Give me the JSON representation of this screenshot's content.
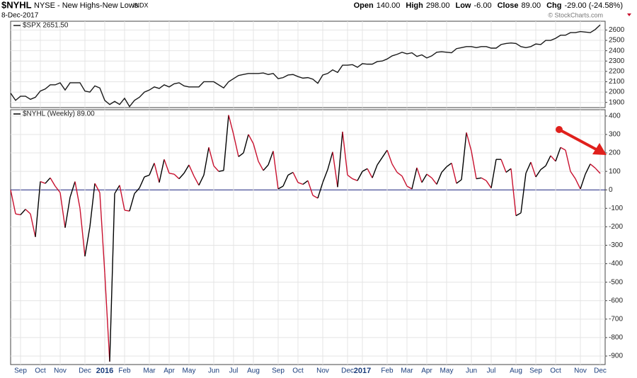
{
  "header": {
    "symbol": "$NYHL",
    "name": "NYSE - New Highs-New Lows",
    "exchange": "INDX",
    "date": "8-Dec-2017",
    "quote": [
      {
        "label": "Open",
        "value": "140.00"
      },
      {
        "label": "High",
        "value": "298.00"
      },
      {
        "label": "Low",
        "value": "-6.00"
      },
      {
        "label": "Close",
        "value": "89.00"
      },
      {
        "label": "Chg",
        "value": "-29.00 (-24.58%)"
      }
    ],
    "watermark": "© StockCharts.com"
  },
  "chart_data": [
    {
      "type": "line",
      "legend": "$SPX 2651.50",
      "color": "#1a1a1a",
      "grid": true,
      "ylim": [
        1850,
        2685
      ],
      "yticks": [
        1900,
        2000,
        2100,
        2200,
        2300,
        2400,
        2500,
        2600
      ],
      "values": [
        1990,
        1920,
        1960,
        1960,
        1930,
        1950,
        2010,
        2030,
        2070,
        2070,
        2090,
        2020,
        2090,
        2090,
        2090,
        2010,
        2000,
        2060,
        2040,
        1920,
        1880,
        1910,
        1880,
        1940,
        1860,
        1920,
        1950,
        2000,
        2020,
        2050,
        2035,
        2070,
        2050,
        2080,
        2090,
        2060,
        2050,
        2050,
        2050,
        2100,
        2100,
        2100,
        2070,
        2040,
        2100,
        2130,
        2160,
        2170,
        2180,
        2180,
        2180,
        2185,
        2170,
        2180,
        2130,
        2140,
        2165,
        2170,
        2150,
        2135,
        2140,
        2125,
        2085,
        2165,
        2180,
        2215,
        2190,
        2260,
        2260,
        2265,
        2240,
        2275,
        2270,
        2270,
        2295,
        2300,
        2320,
        2350,
        2365,
        2385,
        2370,
        2380,
        2345,
        2360,
        2330,
        2350,
        2385,
        2390,
        2385,
        2380,
        2420,
        2430,
        2440,
        2440,
        2430,
        2440,
        2440,
        2425,
        2425,
        2460,
        2470,
        2475,
        2470,
        2440,
        2430,
        2440,
        2465,
        2460,
        2500,
        2500,
        2520,
        2550,
        2550,
        2575,
        2575,
        2585,
        2580,
        2575,
        2605,
        2650
      ]
    },
    {
      "type": "updown-line",
      "legend": "$NYHL (Weekly) 89.00",
      "up_color": "#000000",
      "down_color": "#c8102e",
      "grid": true,
      "zero_color": "#1a237e",
      "ylim": [
        -946,
        434
      ],
      "yticks": [
        400,
        300,
        200,
        100,
        0,
        -100,
        -200,
        -300,
        -400,
        -500,
        -600,
        -700,
        -800,
        -900
      ],
      "categories": [
        null,
        null,
        "Sep",
        null,
        null,
        null,
        "Oct",
        null,
        null,
        null,
        "Nov",
        null,
        null,
        null,
        null,
        "Dec",
        null,
        null,
        null,
        "2016",
        null,
        null,
        null,
        "Feb",
        null,
        null,
        null,
        null,
        "Mar",
        null,
        null,
        null,
        "Apr",
        null,
        null,
        null,
        "May",
        null,
        null,
        null,
        null,
        "Jun",
        null,
        null,
        null,
        "Jul",
        null,
        null,
        null,
        "Aug",
        null,
        null,
        null,
        null,
        "Sep",
        null,
        null,
        null,
        "Oct",
        null,
        null,
        null,
        null,
        "Nov",
        null,
        null,
        null,
        null,
        "Dec",
        null,
        null,
        "2017",
        null,
        null,
        null,
        null,
        "Feb",
        null,
        null,
        null,
        "Mar",
        null,
        null,
        null,
        "Apr",
        null,
        null,
        null,
        "May",
        null,
        null,
        null,
        null,
        "Jun",
        null,
        null,
        null,
        "Jul",
        null,
        null,
        null,
        null,
        "Aug",
        null,
        null,
        null,
        "Sep",
        null,
        null,
        null,
        "Oct",
        null,
        null,
        null,
        null,
        "Nov",
        null,
        null,
        null,
        "Dec"
      ],
      "values": [
        0,
        -130,
        -135,
        -105,
        -130,
        -255,
        45,
        35,
        65,
        20,
        -15,
        -205,
        -40,
        45,
        -100,
        -360,
        -200,
        35,
        -15,
        -450,
        -930,
        -20,
        25,
        -110,
        -115,
        -20,
        10,
        70,
        80,
        145,
        40,
        165,
        90,
        85,
        60,
        90,
        135,
        75,
        25,
        80,
        230,
        130,
        100,
        105,
        405,
        300,
        180,
        200,
        300,
        250,
        155,
        105,
        135,
        210,
        5,
        20,
        80,
        95,
        40,
        30,
        50,
        -30,
        -45,
        40,
        110,
        205,
        15,
        315,
        80,
        60,
        50,
        100,
        115,
        65,
        135,
        175,
        215,
        140,
        95,
        75,
        20,
        5,
        120,
        40,
        85,
        65,
        30,
        95,
        125,
        145,
        35,
        55,
        310,
        210,
        60,
        65,
        50,
        10,
        165,
        165,
        95,
        115,
        -140,
        -125,
        90,
        150,
        70,
        110,
        130,
        185,
        155,
        230,
        215,
        100,
        60,
        5,
        85,
        140,
        118,
        89
      ]
    }
  ]
}
